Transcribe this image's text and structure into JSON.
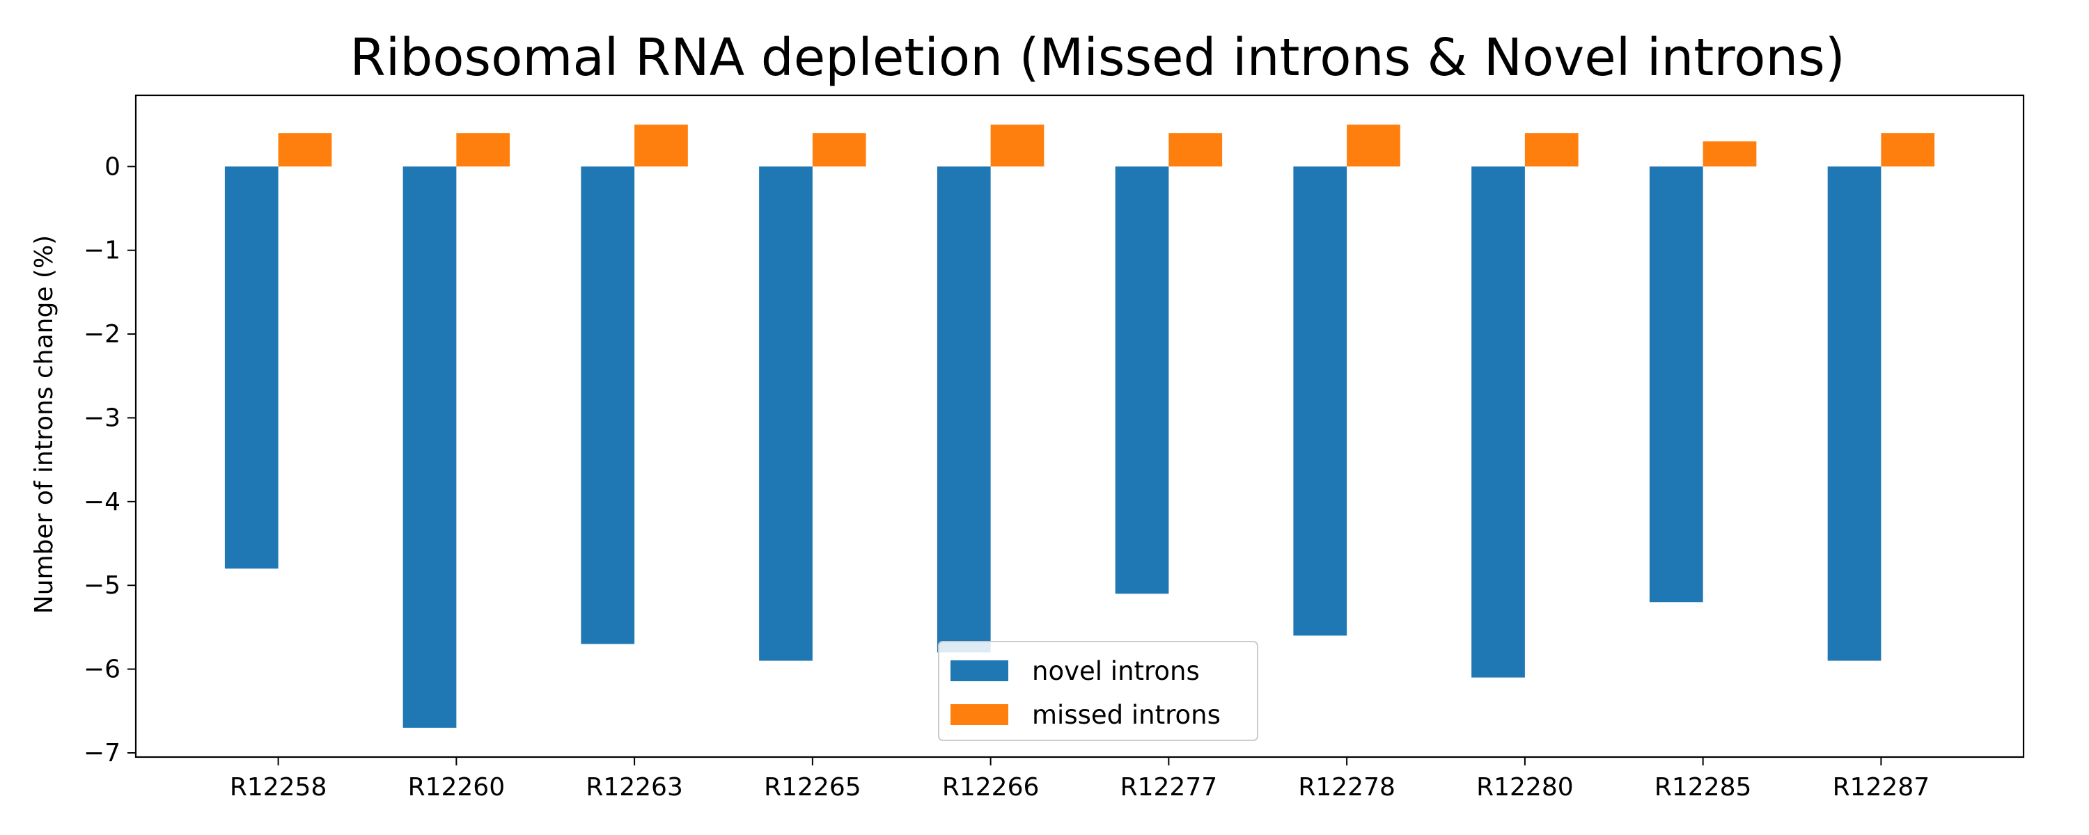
{
  "chart_data": {
    "type": "bar",
    "title": "Ribosomal RNA depletion (Missed introns & Novel introns)",
    "xlabel": "",
    "ylabel": "Number of introns change (%)",
    "categories": [
      "R12258",
      "R12260",
      "R12263",
      "R12265",
      "R12266",
      "R12277",
      "R12278",
      "R12280",
      "R12285",
      "R12287"
    ],
    "series": [
      {
        "name": "novel introns",
        "color": "#1f77b4",
        "values": [
          -4.8,
          -6.7,
          -5.7,
          -5.9,
          -5.8,
          -5.1,
          -5.6,
          -6.1,
          -5.2,
          -5.9
        ]
      },
      {
        "name": "missed introns",
        "color": "#ff7f0e",
        "values": [
          0.4,
          0.4,
          0.5,
          0.4,
          0.5,
          0.4,
          0.5,
          0.4,
          0.3,
          0.4
        ]
      }
    ],
    "ylim": [
      -7.05,
      0.85
    ],
    "yticks": [
      0,
      -1,
      -2,
      -3,
      -4,
      -5,
      -6,
      -7
    ],
    "ytick_labels": [
      "0",
      "−1",
      "−2",
      "−3",
      "−4",
      "−5",
      "−6",
      "−7"
    ],
    "grid": false,
    "legend_position": "lower-center"
  }
}
